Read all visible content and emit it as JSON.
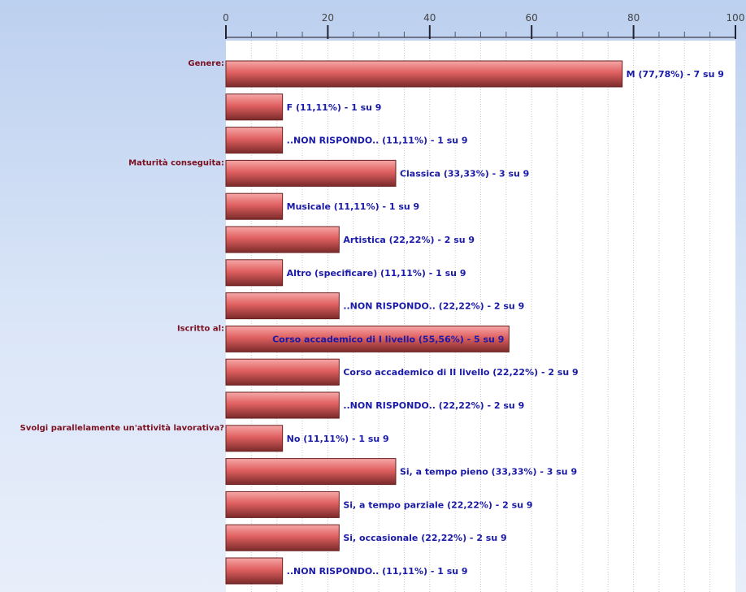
{
  "chart_data": {
    "type": "bar",
    "orientation": "horizontal",
    "xlim": [
      0,
      100
    ],
    "ticks": [
      0,
      20,
      40,
      60,
      80,
      100
    ],
    "grid": true,
    "colors": {
      "bar": "#e06060",
      "bar_dark": "#7a2a2a",
      "label": "#1a1aa8",
      "group": "#7a1020"
    },
    "groups": [
      {
        "label": "Genere:",
        "bars": [
          {
            "label": "M (77,78%) - 7 su 9",
            "value": 77.78
          },
          {
            "label": "F (11,11%) - 1 su 9",
            "value": 11.11
          },
          {
            "label": "..NON RISPONDO.. (11,11%) - 1 su 9",
            "value": 11.11
          }
        ]
      },
      {
        "label": "Maturità conseguita:",
        "bars": [
          {
            "label": "Classica (33,33%) - 3 su 9",
            "value": 33.33
          },
          {
            "label": "Musicale (11,11%) - 1 su 9",
            "value": 11.11
          },
          {
            "label": "Artistica (22,22%) - 2 su 9",
            "value": 22.22
          },
          {
            "label": "Altro (specificare) (11,11%) - 1 su 9",
            "value": 11.11
          },
          {
            "label": "..NON RISPONDO.. (22,22%) - 2 su 9",
            "value": 22.22
          }
        ]
      },
      {
        "label": "Iscritto al:",
        "bars": [
          {
            "label": "Corso accademico di I livello (55,56%) - 5 su 9",
            "value": 55.56
          },
          {
            "label": "Corso accademico di II livello (22,22%) - 2 su 9",
            "value": 22.22
          },
          {
            "label": "..NON RISPONDO.. (22,22%) - 2 su 9",
            "value": 22.22
          }
        ]
      },
      {
        "label": "Svolgi parallelamente un'attività lavorativa?",
        "bars": [
          {
            "label": "No (11,11%) - 1 su 9",
            "value": 11.11
          },
          {
            "label": "Si, a tempo pieno (33,33%) - 3 su 9",
            "value": 33.33
          },
          {
            "label": "Si, a tempo parziale (22,22%) - 2 su 9",
            "value": 22.22
          },
          {
            "label": "Si, occasionale (22,22%) - 2 su 9",
            "value": 22.22
          },
          {
            "label": "..NON RISPONDO.. (11,11%) - 1 su 9",
            "value": 11.11
          }
        ]
      }
    ]
  }
}
